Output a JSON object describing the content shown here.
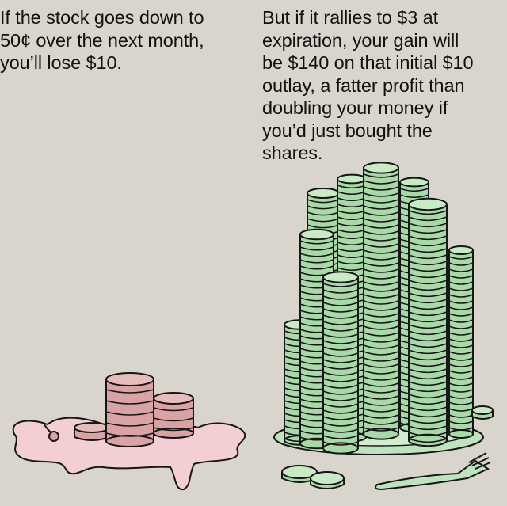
{
  "captions": {
    "left": "If the stock goes down to\n50¢ over the next month,\nyou’ll lose $10.",
    "right": "But if it rallies to $3 at\nexpiration, your gain will\nbe $140 on that initial $10\noutlay, a fatter profit than\ndoubling your money if\nyou’d just bought the\nshares."
  },
  "colors": {
    "background": "#d9d4cc",
    "loss_coin": "#d9a3a3",
    "loss_puddle": "#f3cfd3",
    "gain_coin": "#a9d9a9",
    "gain_coin_light": "#c8ebc6",
    "outline": "#161616"
  },
  "illustrations": {
    "left": "melting-pink-coin-stacks",
    "right": "tall-green-coin-stacks-on-plate-with-fork"
  }
}
